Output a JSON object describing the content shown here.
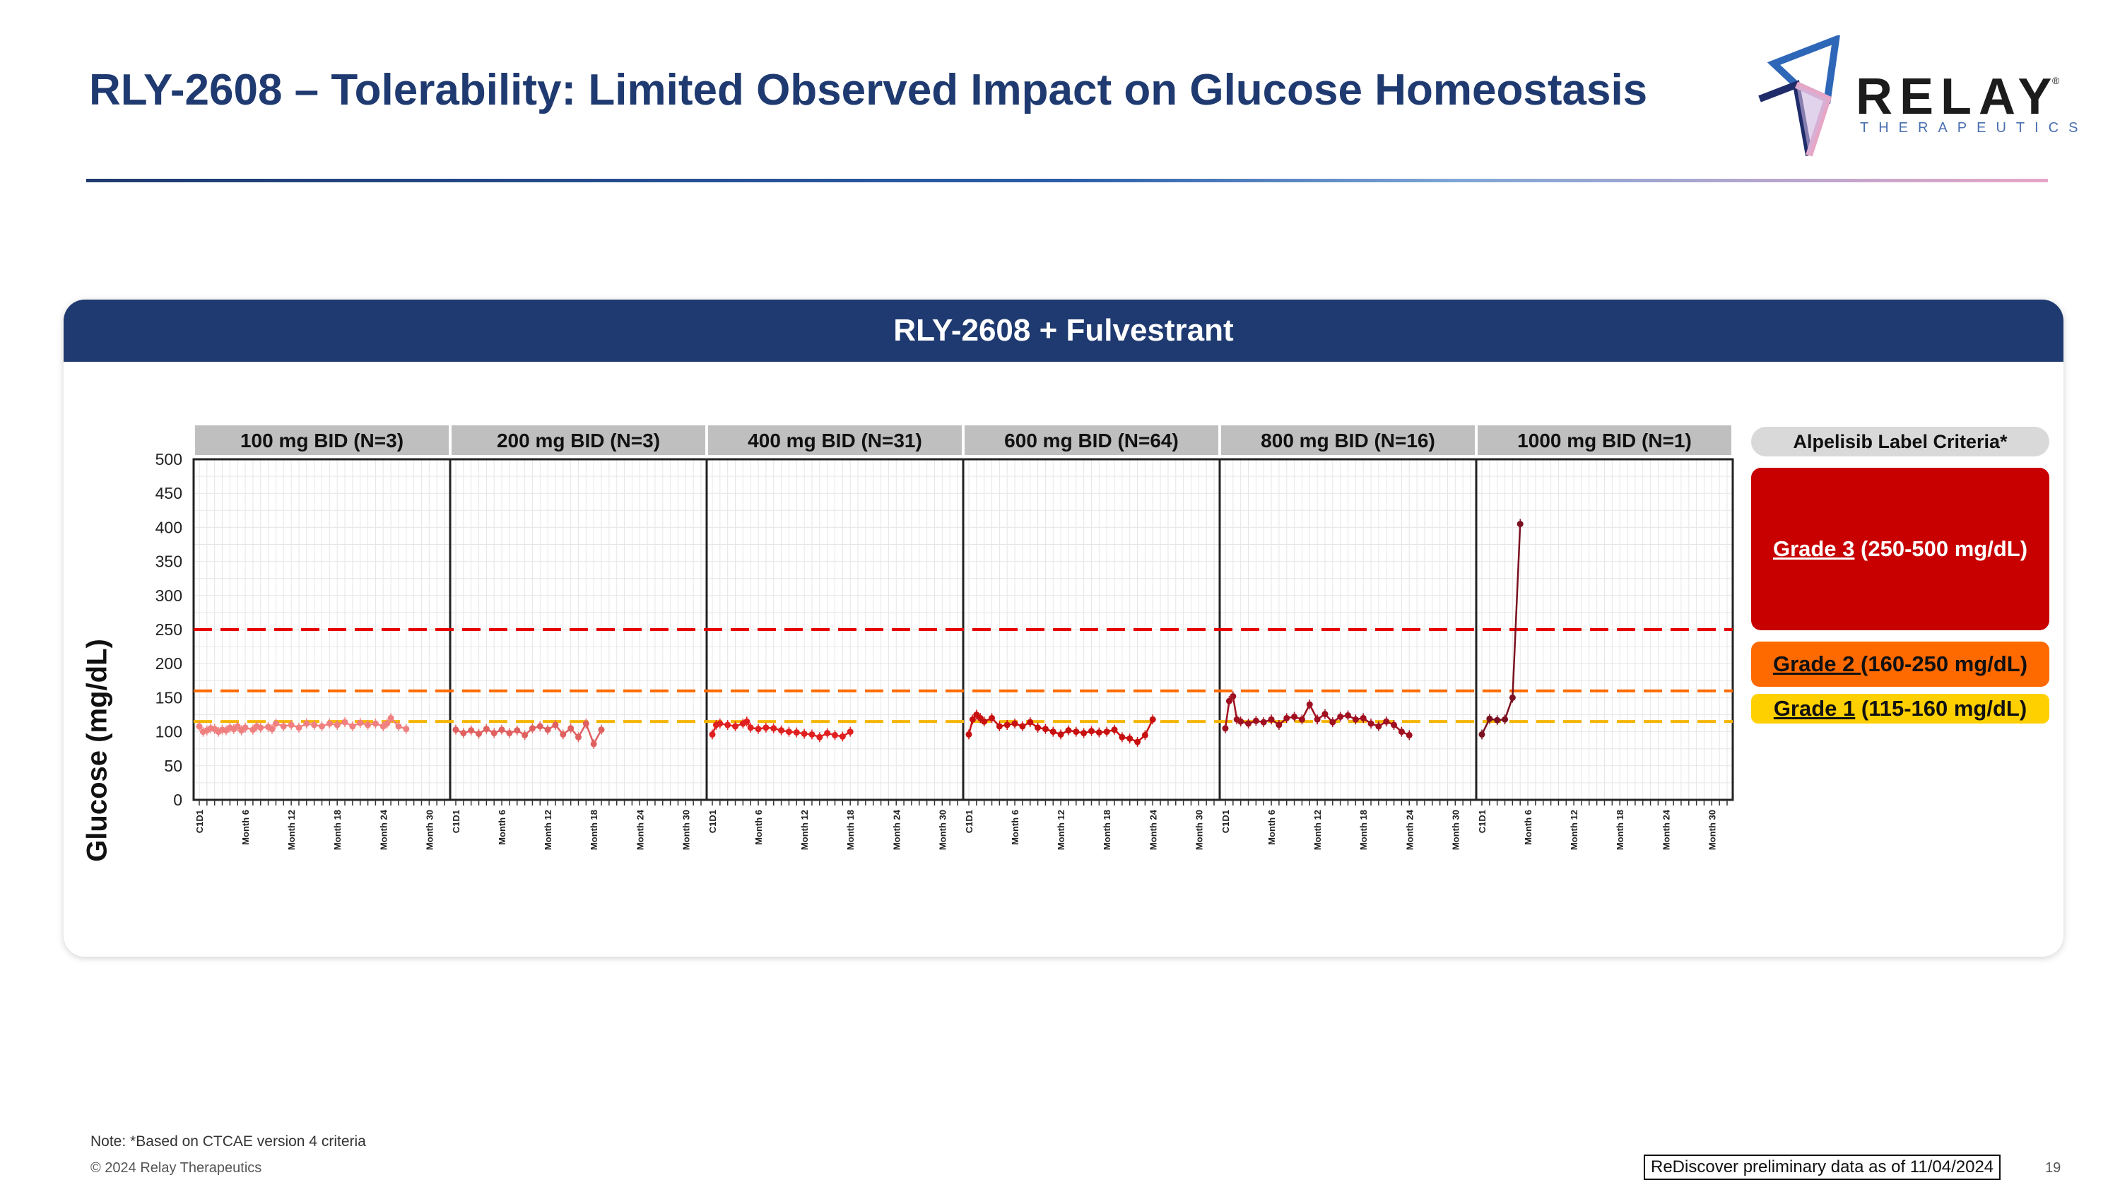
{
  "page": {
    "title": "RLY-2608 – Tolerability: Limited Observed Impact on Glucose Homeostasis",
    "logo_word": "RELAY",
    "logo_sub": "THERAPEUTICS",
    "logo_reg": "®",
    "panel_title": "RLY-2608 + Fulvestrant",
    "note": "Note: *Based on CTCAE version 4 criteria",
    "copyright": "© 2024 Relay Therapeutics",
    "data_cutoff": "ReDiscover preliminary data as of 11/04/2024",
    "page_number": "19"
  },
  "legend": {
    "title": "Alpelisib Label Criteria*",
    "grade3_name": "Grade 3",
    "grade3_range": " (250-500 mg/dL)",
    "grade2_name": "Grade 2 ",
    "grade2_range": " (160-250 mg/dL)",
    "grade1_name": "Grade 1",
    "grade1_range": " (115-160 mg/dL)"
  },
  "chart_data": {
    "type": "line",
    "ylabel": "Glucose (mg/dL)",
    "ylim": [
      0,
      500
    ],
    "yticks": [
      0,
      50,
      100,
      150,
      200,
      250,
      300,
      350,
      400,
      450,
      500
    ],
    "xtick_labels": [
      "C1D1",
      "Month 6",
      "Month 12",
      "Month 18",
      "Month 24",
      "Month 30"
    ],
    "reference_lines": [
      {
        "name": "Grade 3",
        "value": 250,
        "color": "#e60000"
      },
      {
        "name": "Grade 2",
        "value": 160,
        "color": "#ff6a00"
      },
      {
        "name": "Grade 1",
        "value": 115,
        "color": "#f5b400"
      }
    ],
    "colors": {
      "Grade 3": "#c80000",
      "Grade 2": "#ff6a00",
      "Grade 1": "#ffd000",
      "panel_title_bg": "#1f3a70",
      "facet_header_bg": "#bfbfbf"
    },
    "series": [
      {
        "name": "100 mg BID (N=3)",
        "color": "#f08080",
        "x": [
          0,
          0.5,
          1,
          1.5,
          2,
          2.5,
          3,
          3.5,
          4,
          4.5,
          5,
          5.5,
          6,
          7,
          7.5,
          8,
          9,
          9.5,
          10,
          11,
          12,
          13,
          14,
          15,
          16,
          17,
          18,
          19,
          20,
          21,
          22,
          23,
          24,
          24.5,
          25,
          26,
          27
        ],
        "y": [
          108,
          100,
          102,
          105,
          104,
          100,
          103,
          102,
          106,
          104,
          108,
          102,
          106,
          103,
          108,
          106,
          107,
          104,
          112,
          108,
          110,
          106,
          112,
          110,
          108,
          112,
          110,
          114,
          108,
          113,
          110,
          112,
          108,
          112,
          120,
          108,
          104
        ]
      },
      {
        "name": "200 mg BID (N=3)",
        "color": "#e06060",
        "x": [
          0,
          1,
          2,
          3,
          4,
          5,
          6,
          7,
          8,
          9,
          10,
          11,
          12,
          13,
          14,
          15,
          16,
          17,
          18,
          19
        ],
        "y": [
          103,
          98,
          102,
          97,
          104,
          98,
          103,
          98,
          102,
          95,
          105,
          108,
          103,
          110,
          96,
          105,
          92,
          112,
          82,
          103
        ]
      },
      {
        "name": "400 mg BID (N=31)",
        "color": "#e02020",
        "x": [
          0,
          0.5,
          1,
          2,
          3,
          4,
          4.5,
          5,
          6,
          7,
          8,
          9,
          10,
          11,
          12,
          13,
          14,
          15,
          16,
          17,
          18
        ],
        "y": [
          96,
          110,
          112,
          110,
          108,
          112,
          115,
          106,
          104,
          106,
          105,
          102,
          100,
          99,
          97,
          96,
          92,
          98,
          95,
          93,
          100
        ]
      },
      {
        "name": "600 mg BID (N=64)",
        "color": "#c81010",
        "x": [
          0,
          0.5,
          1,
          1.5,
          2,
          3,
          4,
          5,
          6,
          7,
          8,
          9,
          10,
          11,
          12,
          13,
          14,
          15,
          16,
          17,
          18,
          19,
          20,
          21,
          22,
          23,
          24
        ],
        "y": [
          96,
          118,
          125,
          120,
          115,
          120,
          108,
          110,
          112,
          108,
          114,
          106,
          104,
          100,
          96,
          102,
          100,
          98,
          101,
          99,
          100,
          103,
          92,
          90,
          85,
          95,
          118
        ]
      },
      {
        "name": "800 mg BID (N=16)",
        "color": "#a01020",
        "x": [
          0,
          0.5,
          1,
          1.5,
          2,
          3,
          4,
          5,
          6,
          7,
          8,
          9,
          10,
          11,
          12,
          13,
          14,
          15,
          16,
          17,
          18,
          19,
          20,
          21,
          22,
          23,
          24
        ],
        "y": [
          105,
          145,
          152,
          118,
          115,
          112,
          116,
          114,
          118,
          110,
          120,
          122,
          118,
          140,
          118,
          126,
          114,
          122,
          124,
          118,
          120,
          112,
          108,
          115,
          110,
          100,
          95
        ]
      },
      {
        "name": "1000 mg BID (N=1)",
        "color": "#7a1020",
        "x": [
          0,
          1,
          2,
          3,
          4,
          5
        ],
        "y": [
          96,
          119,
          117,
          118,
          150,
          405
        ]
      }
    ]
  }
}
